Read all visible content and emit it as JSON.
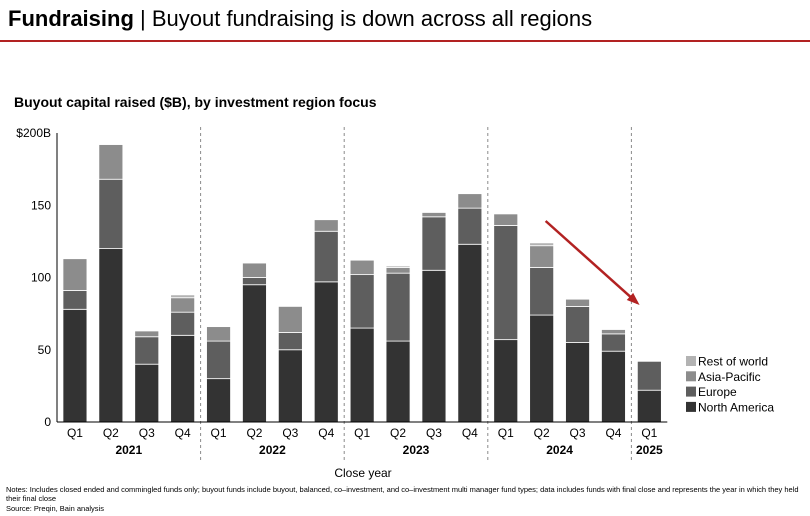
{
  "header": {
    "title_bold": "Fundraising",
    "title_separator": " | ",
    "title_rest": "Buyout fundraising is down across all regions"
  },
  "colors": {
    "accent_red": "#b22222",
    "rest_of_world": "#b3b3b3",
    "asia_pacific": "#8c8c8c",
    "europe": "#5e5e5e",
    "north_america": "#333333"
  },
  "chart_data": {
    "type": "bar",
    "stacked": true,
    "title": "Buyout capital raised ($B), by investment region focus",
    "xlabel": "Close year",
    "ylabel": "",
    "ylim": [
      0,
      200
    ],
    "y_ticks": [
      "0",
      "50",
      "100",
      "150",
      "$200B"
    ],
    "grid": false,
    "legend_position": "right",
    "categories": [
      "Q1",
      "Q2",
      "Q3",
      "Q4",
      "Q1",
      "Q2",
      "Q3",
      "Q4",
      "Q1",
      "Q2",
      "Q3",
      "Q4",
      "Q1",
      "Q2",
      "Q3",
      "Q4",
      "Q1"
    ],
    "year_groups": [
      {
        "label": "2021",
        "count": 4
      },
      {
        "label": "2022",
        "count": 4
      },
      {
        "label": "2023",
        "count": 4
      },
      {
        "label": "2024",
        "count": 4
      },
      {
        "label": "2025",
        "count": 1
      }
    ],
    "series": [
      {
        "name": "North America",
        "values": [
          78,
          120,
          40,
          60,
          30,
          95,
          50,
          97,
          65,
          56,
          105,
          123,
          57,
          74,
          55,
          49,
          22
        ]
      },
      {
        "name": "Europe",
        "values": [
          13,
          48,
          19,
          16,
          26,
          5,
          12,
          35,
          37,
          47,
          37,
          25,
          79,
          33,
          25,
          12,
          20
        ]
      },
      {
        "name": "Asia-Pacific",
        "values": [
          22,
          24,
          4,
          10,
          10,
          10,
          18,
          8,
          10,
          4,
          3,
          10,
          8,
          15,
          5,
          3,
          0
        ]
      },
      {
        "name": "Rest of world",
        "values": [
          0,
          0,
          0,
          2,
          0,
          0,
          0,
          0,
          0,
          1,
          0,
          0,
          0,
          2,
          0,
          0,
          0
        ]
      }
    ],
    "annotation": {
      "type": "arrow",
      "color": "#b22222",
      "from_category_index": 13,
      "to_category_index": 16
    }
  },
  "footer": {
    "notes": "Notes: Includes closed ended and commingled funds only; buyout funds include buyout, balanced, co–investment, and co–investment multi manager fund types; data includes funds with final close and represents the year in which they held their final close",
    "source": "Source: Preqin, Bain analysis"
  }
}
